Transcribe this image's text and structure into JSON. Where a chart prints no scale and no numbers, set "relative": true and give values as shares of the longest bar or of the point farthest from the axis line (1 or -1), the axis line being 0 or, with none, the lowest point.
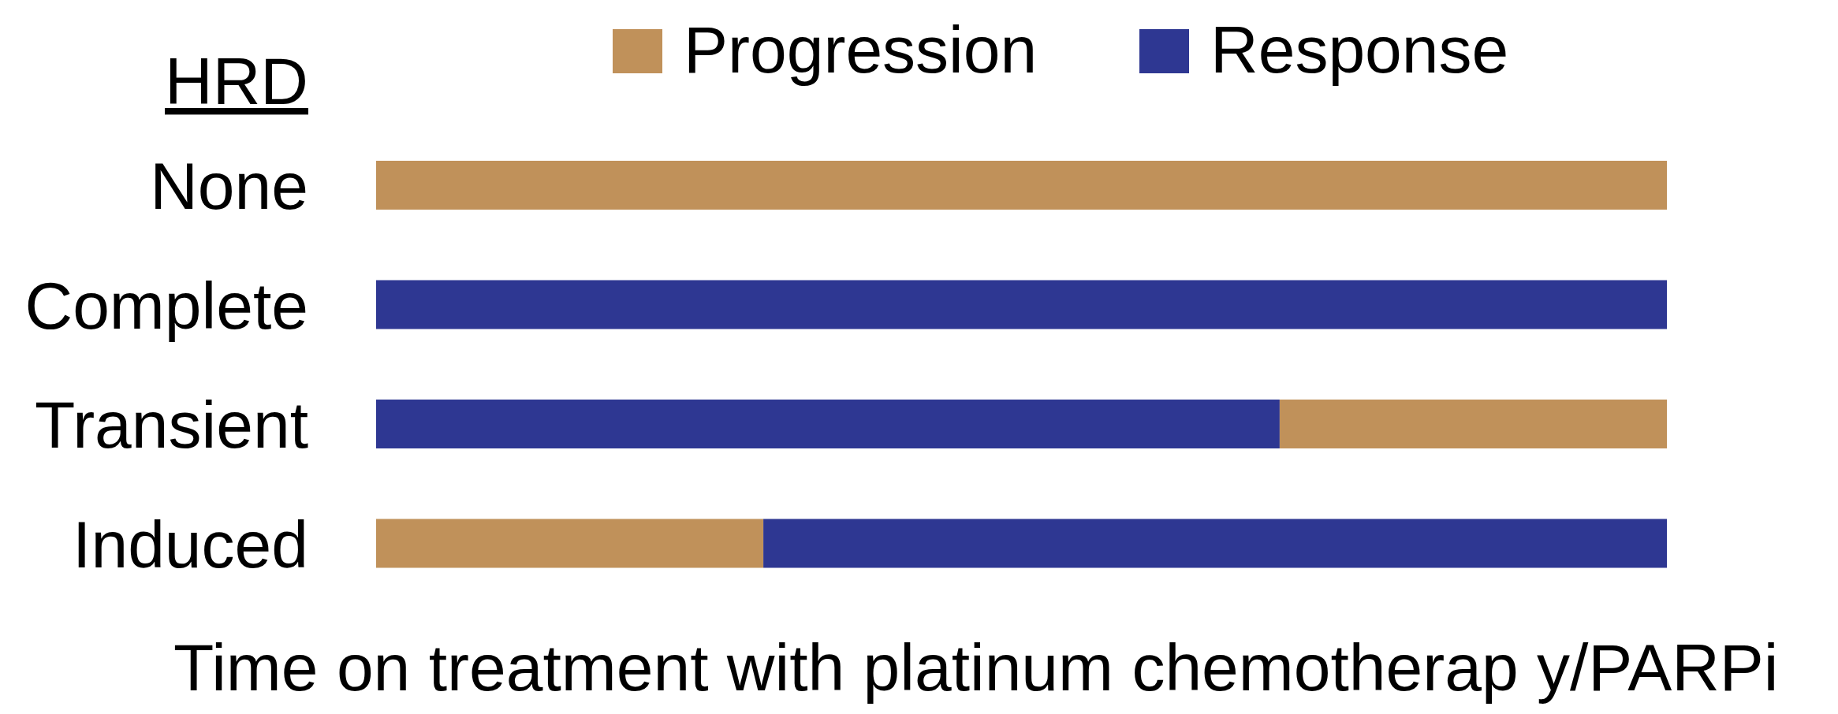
{
  "chart_data": {
    "type": "bar",
    "orientation": "horizontal",
    "stacked": true,
    "relative": true,
    "ylabel": "HRD",
    "xlabel": "Time on treatment with platinum chemotherap y/PARPi",
    "categories": [
      "None",
      "Complete",
      "Transient",
      "Induced"
    ],
    "legend": "top",
    "series": [
      {
        "name": "Progression",
        "color": "#c0915a",
        "values": [
          1,
          null,
          null,
          0.3
        ]
      },
      {
        "name": "Response",
        "color": "#2e3792",
        "values": [
          null,
          1,
          0.7,
          0.7
        ]
      },
      {
        "color": "#c0915a",
        "values": [
          null,
          null,
          0.3,
          null
        ]
      }
    ]
  }
}
